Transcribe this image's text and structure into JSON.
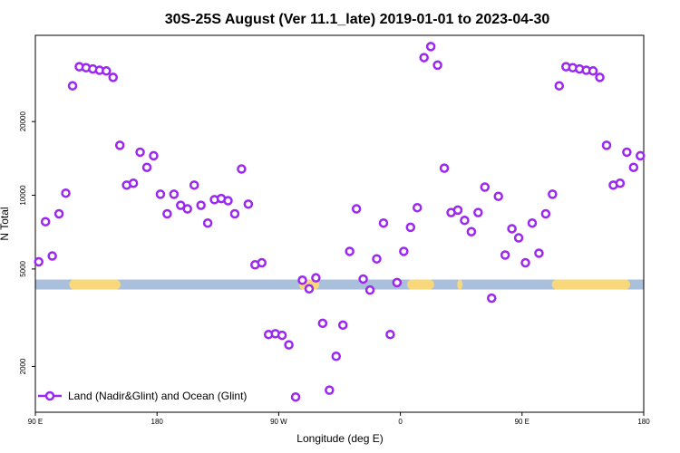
{
  "chart_data": {
    "type": "scatter",
    "title": "30S-25S August (Ver 11.1_late)   2019-01-01 to 2023-04-30",
    "xlabel": "Longitude (deg E)",
    "ylabel": "N Total",
    "y_scale": "log",
    "xlim": [
      90,
      540
    ],
    "ylim": [
      1300,
      45000
    ],
    "x_ticks": [
      {
        "value": 90,
        "label": "90 E"
      },
      {
        "value": 180,
        "label": "180"
      },
      {
        "value": 270,
        "label": "90 W"
      },
      {
        "value": 360,
        "label": "0"
      },
      {
        "value": 450,
        "label": "90 E"
      },
      {
        "value": 540,
        "label": "180"
      }
    ],
    "y_ticks": [
      {
        "value": 2000,
        "label": "2000"
      },
      {
        "value": 5000,
        "label": "5000"
      },
      {
        "value": 10000,
        "label": "10000"
      },
      {
        "value": 20000,
        "label": "20000"
      }
    ],
    "legend": {
      "label": "Land (Nadir&Glint) and Ocean (Glint)",
      "position": "bottom-left"
    },
    "colors": {
      "series": "#9b27f0",
      "ocean_band": "#a9bfdb",
      "land_band": "#f8d87a"
    },
    "surface_band": {
      "y_value": 4320,
      "land_segments": [
        [
          115,
          153
        ],
        [
          285,
          300
        ],
        [
          365,
          385
        ],
        [
          402,
          406
        ],
        [
          472,
          530
        ]
      ]
    },
    "series": [
      {
        "name": "Land (Nadir&Glint) and Ocean (Glint)",
        "x": [
          92.5,
          97.5,
          102.5,
          107.5,
          112.5,
          117.5,
          122.5,
          127.5,
          132.5,
          137.5,
          142.5,
          147.5,
          152.5,
          157.5,
          162.5,
          167.5,
          172.5,
          177.5,
          182.5,
          187.5,
          192.5,
          197.5,
          202.5,
          207.5,
          212.5,
          217.5,
          222.5,
          227.5,
          232.5,
          237.5,
          242.5,
          247.5,
          252.5,
          257.5,
          262.5,
          267.5,
          272.5,
          277.5,
          282.5,
          287.5,
          292.5,
          297.5,
          302.5,
          307.5,
          312.5,
          317.5,
          322.5,
          327.5,
          332.5,
          337.5,
          342.5,
          347.5,
          352.5,
          357.5,
          362.5,
          367.5,
          372.5,
          377.5,
          382.5,
          387.5,
          392.5,
          397.5,
          402.5,
          407.5,
          412.5,
          417.5,
          422.5,
          427.5,
          432.5,
          437.5,
          442.5,
          447.5,
          452.5,
          457.5,
          462.5,
          467.5,
          472.5,
          477.5,
          482.5,
          487.5,
          492.5,
          497.5,
          502.5,
          507.5,
          512.5,
          517.5,
          522.5,
          527.5,
          532.5,
          537.5
        ],
        "y": [
          5350,
          7800,
          5650,
          8400,
          10200,
          28000,
          33500,
          33200,
          32800,
          32400,
          32200,
          30300,
          16000,
          11000,
          11200,
          15000,
          13000,
          14500,
          10100,
          8400,
          10100,
          9100,
          8800,
          11000,
          9100,
          7700,
          9600,
          9700,
          9500,
          8400,
          12800,
          9200,
          5200,
          5300,
          2700,
          2720,
          2680,
          2450,
          1500,
          4500,
          4150,
          4600,
          3000,
          1600,
          2200,
          2950,
          5900,
          8800,
          4550,
          4100,
          5500,
          7700,
          2700,
          4400,
          5900,
          7400,
          8900,
          36500,
          40500,
          34000,
          12900,
          8500,
          8700,
          7900,
          7100,
          8500,
          10800,
          3800,
          9900,
          5700,
          7300,
          6700,
          5300,
          7700,
          5800,
          8400,
          10100,
          28000,
          33500,
          33200,
          32800,
          32400,
          32200,
          30300,
          16000,
          11000,
          11200,
          15000,
          13000,
          14500
        ]
      }
    ]
  }
}
